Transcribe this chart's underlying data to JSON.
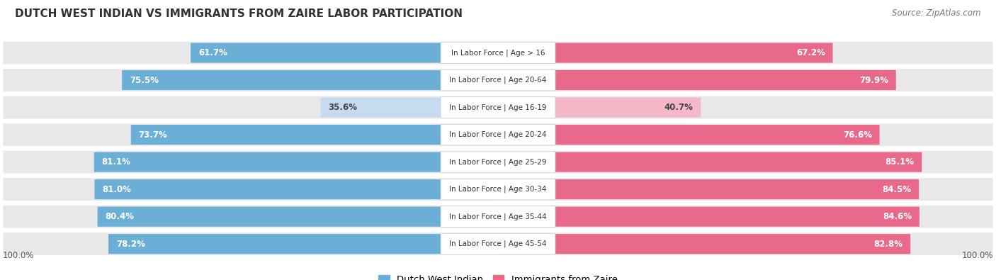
{
  "title": "DUTCH WEST INDIAN VS IMMIGRANTS FROM ZAIRE LABOR PARTICIPATION",
  "source": "Source: ZipAtlas.com",
  "categories": [
    "In Labor Force | Age > 16",
    "In Labor Force | Age 20-64",
    "In Labor Force | Age 16-19",
    "In Labor Force | Age 20-24",
    "In Labor Force | Age 25-29",
    "In Labor Force | Age 30-34",
    "In Labor Force | Age 35-44",
    "In Labor Force | Age 45-54"
  ],
  "dutch_values": [
    61.7,
    75.5,
    35.6,
    73.7,
    81.1,
    81.0,
    80.4,
    78.2
  ],
  "zaire_values": [
    67.2,
    79.9,
    40.7,
    76.6,
    85.1,
    84.5,
    84.6,
    82.8
  ],
  "dutch_color": "#6baed6",
  "dutch_color_light": "#c6dbef",
  "zaire_color": "#e8698a",
  "zaire_color_light": "#f4b8c8",
  "row_bg_color": "#e8e8ea",
  "legend_dutch": "Dutch West Indian",
  "legend_zaire": "Immigrants from Zaire",
  "fig_width": 14.06,
  "fig_height": 3.95,
  "background_color": "#ffffff",
  "label_bottom_left": "100.0%",
  "label_bottom_right": "100.0%"
}
